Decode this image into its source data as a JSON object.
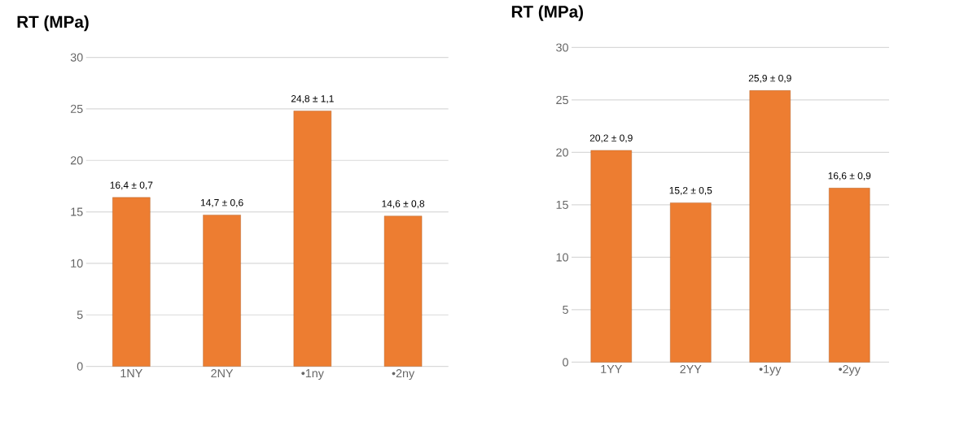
{
  "chart_data": [
    {
      "type": "bar",
      "title": "RT (MPa)",
      "categories": [
        "1NY",
        "2NY",
        "•1ny",
        "•2ny"
      ],
      "values": [
        16.4,
        14.7,
        24.8,
        14.6
      ],
      "color": "#ed7d31",
      "value_labels": [
        "16,4 ± 0,7",
        "14,7 ± 0,6",
        "24,8 ± 1,1",
        "14,6 ± 0,8"
      ],
      "ylim": [
        0,
        30
      ],
      "yticks": [
        0,
        5,
        10,
        15,
        20,
        25,
        30
      ],
      "grid": "y"
    },
    {
      "type": "bar",
      "title": "RT (MPa)",
      "categories": [
        "1YY",
        "2YY",
        "•1yy",
        "•2yy"
      ],
      "values": [
        20.2,
        15.2,
        25.9,
        16.6
      ],
      "color": "#ed7d31",
      "value_labels": [
        "20,2 ± 0,9",
        "15,2 ± 0,5",
        "25,9 ± 0,9",
        "16,6 ± 0,9"
      ],
      "ylim": [
        0,
        30
      ],
      "yticks": [
        0,
        5,
        10,
        15,
        20,
        25,
        30
      ],
      "grid": "y"
    }
  ]
}
